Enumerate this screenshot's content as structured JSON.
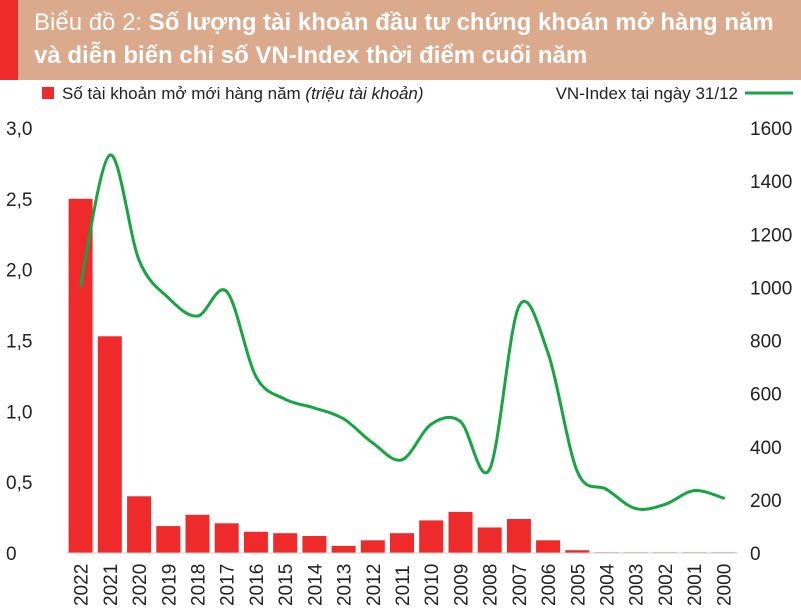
{
  "colors": {
    "header_background": "#dba98b",
    "header_accent": "#ee2a2a",
    "header_text": "#ffffff",
    "bar": "#ee2a2a",
    "line": "#17a541",
    "text": "#222222"
  },
  "header": {
    "prefix": "Biểu đồ 2: ",
    "title": "Số lượng tài khoản đầu tư chứng khoán mở hàng năm và diễn biến chỉ số VN-Index thời điểm cuối năm"
  },
  "chart_data": {
    "type": "bar",
    "title": "Biểu đồ 2: Số lượng tài khoản đầu tư chứng khoán mở hàng năm và diễn biến chỉ số VN-Index thời điểm cuối năm",
    "categories": [
      "2022",
      "2021",
      "2020",
      "2019",
      "2018",
      "2017",
      "2016",
      "2015",
      "2014",
      "2013",
      "2012",
      "2011",
      "2010",
      "2009",
      "2008",
      "2007",
      "2006",
      "2005",
      "2004",
      "2003",
      "2002",
      "2001",
      "2000"
    ],
    "series": [
      {
        "name_prefix": "Số tài khoản mở mới hàng năm ",
        "name_suffix": "(triệu tài khoản)",
        "type": "bar",
        "axis": "left",
        "values": [
          2.5,
          1.53,
          0.4,
          0.19,
          0.27,
          0.21,
          0.15,
          0.14,
          0.12,
          0.05,
          0.09,
          0.14,
          0.23,
          0.29,
          0.18,
          0.24,
          0.09,
          0.02,
          0.005,
          0.005,
          0.005,
          0.005,
          0.005
        ]
      },
      {
        "name": "VN-Index tại ngày 31/12",
        "type": "line",
        "axis": "right",
        "values": [
          1007,
          1498,
          1103,
          961,
          892,
          984,
          665,
          579,
          546,
          505,
          414,
          351,
          485,
          495,
          316,
          928,
          752,
          307,
          240,
          167,
          183,
          235,
          207
        ]
      }
    ],
    "y_left": {
      "min": 0,
      "max": 3.0,
      "ticks": [
        "0",
        "0,5",
        "1,0",
        "1,5",
        "2,0",
        "2,5",
        "3,0"
      ]
    },
    "y_right": {
      "min": 0,
      "max": 1600,
      "ticks": [
        "0",
        "200",
        "400",
        "600",
        "800",
        "1000",
        "1200",
        "1400",
        "1600"
      ]
    },
    "legend_position": "top",
    "grid": false
  }
}
